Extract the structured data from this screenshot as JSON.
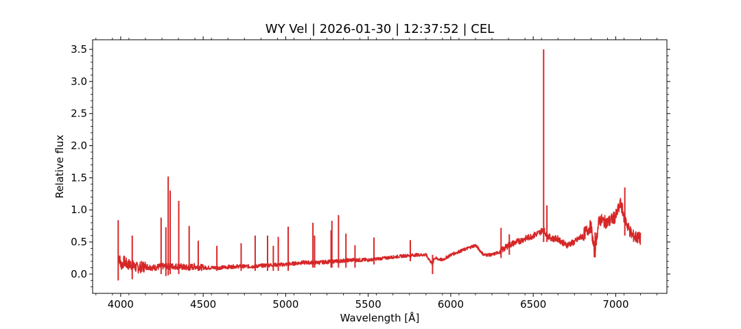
{
  "chart_data": {
    "type": "line",
    "title": "WY Vel | 2026-01-30 | 12:37:52 | CEL",
    "xlabel": "Wavelength [Å]",
    "ylabel": "Relative flux",
    "xlim": [
      3830,
      7310
    ],
    "ylim": [
      -0.3,
      3.65
    ],
    "xticks": [
      4000,
      4500,
      5000,
      5500,
      6000,
      6500,
      7000
    ],
    "xtick_labels": [
      "4000",
      "4500",
      "5000",
      "5500",
      "6000",
      "6500",
      "7000"
    ],
    "yticks": [
      0.0,
      0.5,
      1.0,
      1.5,
      2.0,
      2.5,
      3.0,
      3.5
    ],
    "ytick_labels": [
      "0.0",
      "0.5",
      "1.0",
      "1.5",
      "2.0",
      "2.5",
      "3.0",
      "3.5"
    ],
    "grid": false,
    "series": [
      {
        "color": "#d62728",
        "x": [
          3985,
          3990,
          4000,
          4010,
          4020,
          4040,
          4060,
          4080,
          4100,
          4150,
          4200,
          4250,
          4300,
          4350,
          4400,
          4450,
          4500,
          4600,
          4700,
          4800,
          4900,
          5000,
          5100,
          5200,
          5300,
          5400,
          5500,
          5600,
          5700,
          5800,
          5850,
          5890,
          5900,
          5950,
          6000,
          6050,
          6100,
          6150,
          6200,
          6250,
          6300,
          6350,
          6400,
          6450,
          6500,
          6540,
          6563,
          6580,
          6620,
          6650,
          6700,
          6750,
          6800,
          6850,
          6870,
          6880,
          6900,
          6950,
          7000,
          7030,
          7050,
          7080,
          7100,
          7150
        ],
        "y": [
          0.2,
          0.3,
          0.15,
          0.15,
          0.2,
          0.15,
          0.15,
          0.12,
          0.1,
          0.12,
          0.1,
          0.12,
          0.12,
          0.12,
          0.1,
          0.12,
          0.1,
          0.1,
          0.12,
          0.12,
          0.14,
          0.15,
          0.18,
          0.18,
          0.2,
          0.22,
          0.22,
          0.25,
          0.28,
          0.3,
          0.3,
          0.15,
          0.25,
          0.22,
          0.3,
          0.35,
          0.4,
          0.45,
          0.3,
          0.3,
          0.35,
          0.45,
          0.5,
          0.55,
          0.6,
          0.65,
          0.7,
          0.6,
          0.55,
          0.55,
          0.45,
          0.5,
          0.6,
          0.75,
          0.35,
          0.5,
          0.85,
          0.8,
          0.9,
          1.1,
          0.9,
          0.7,
          0.6,
          0.55
        ],
        "features": [
          {
            "x": 3985,
            "peak": 0.84,
            "trough": -0.1
          },
          {
            "x": 4070,
            "peak": 0.6,
            "trough": -0.08
          },
          {
            "x": 4245,
            "peak": 0.88,
            "trough": 0.0
          },
          {
            "x": 4274,
            "peak": 0.73,
            "trough": -0.03
          },
          {
            "x": 4288,
            "peak": 1.52,
            "trough": -0.02
          },
          {
            "x": 4300,
            "peak": 1.3,
            "trough": 0.0
          },
          {
            "x": 4352,
            "peak": 1.14,
            "trough": 0.0
          },
          {
            "x": 4415,
            "peak": 0.75,
            "trough": 0.05
          },
          {
            "x": 4470,
            "peak": 0.52,
            "trough": 0.05
          },
          {
            "x": 4583,
            "peak": 0.44,
            "trough": 0.05
          },
          {
            "x": 4730,
            "peak": 0.48,
            "trough": 0.05
          },
          {
            "x": 4815,
            "peak": 0.6,
            "trough": 0.05
          },
          {
            "x": 4890,
            "peak": 0.6,
            "trough": 0.05
          },
          {
            "x": 4925,
            "peak": 0.44,
            "trough": 0.05
          },
          {
            "x": 4955,
            "peak": 0.58,
            "trough": 0.05
          },
          {
            "x": 5015,
            "peak": 0.74,
            "trough": 0.05
          },
          {
            "x": 5165,
            "peak": 0.8,
            "trough": 0.1
          },
          {
            "x": 5175,
            "peak": 0.6,
            "trough": 0.1
          },
          {
            "x": 5275,
            "peak": 0.68,
            "trough": 0.1
          },
          {
            "x": 5280,
            "peak": 0.83,
            "trough": 0.1
          },
          {
            "x": 5320,
            "peak": 0.92,
            "trough": 0.1
          },
          {
            "x": 5365,
            "peak": 0.63,
            "trough": 0.1
          },
          {
            "x": 5420,
            "peak": 0.45,
            "trough": 0.1
          },
          {
            "x": 5535,
            "peak": 0.57,
            "trough": 0.15
          },
          {
            "x": 5755,
            "peak": 0.53,
            "trough": 0.2
          },
          {
            "x": 5890,
            "peak": 0.3,
            "trough": 0.0
          },
          {
            "x": 6305,
            "peak": 0.72,
            "trough": 0.25
          },
          {
            "x": 6355,
            "peak": 0.62,
            "trough": 0.3
          },
          {
            "x": 6563,
            "peak": 3.5,
            "trough": 0.5
          },
          {
            "x": 6583,
            "peak": 1.07,
            "trough": 0.5
          },
          {
            "x": 6875,
            "peak": 0.65,
            "trough": 0.26
          },
          {
            "x": 7055,
            "peak": 1.35,
            "trough": 0.6
          }
        ]
      }
    ]
  }
}
